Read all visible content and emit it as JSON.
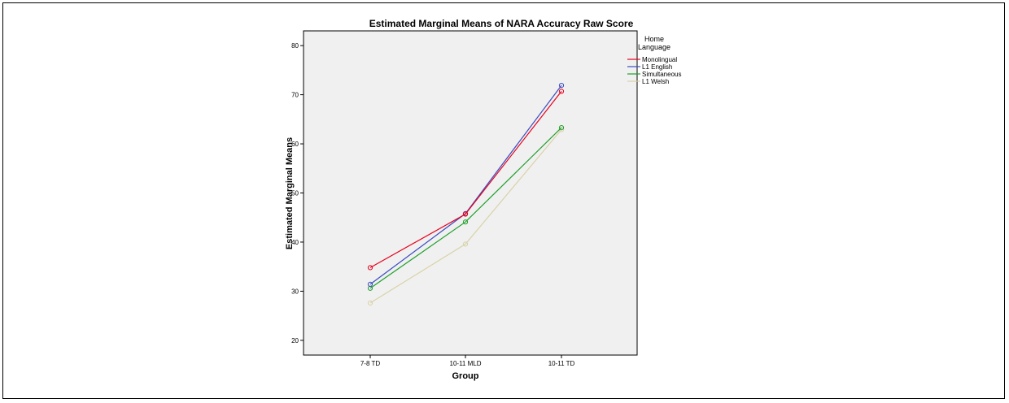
{
  "chart_data": {
    "type": "line",
    "title": "Estimated Marginal Means of NARA Accuracy Raw Score",
    "xlabel": "Group",
    "ylabel": "Estimated Marginal Means",
    "categories": [
      "7-8 TD",
      "10-11 MLD",
      "10-11 TD"
    ],
    "yticks": [
      "20",
      "30",
      "40",
      "50",
      "60",
      "70",
      "80"
    ],
    "ylim": [
      17,
      83
    ],
    "grid": false,
    "legend": {
      "title_lines": [
        "Home",
        "Language"
      ],
      "placement": "right"
    },
    "series": [
      {
        "name": "Monolingual",
        "color": "#e8001c",
        "values": [
          34.8,
          45.7,
          70.7
        ]
      },
      {
        "name": "L1 English",
        "color": "#3b4cc0",
        "values": [
          31.4,
          45.8,
          71.9
        ]
      },
      {
        "name": "Simultaneous",
        "color": "#1fa02c",
        "values": [
          30.6,
          44.1,
          63.3
        ]
      },
      {
        "name": "L1 Welsh",
        "color": "#d9d2a8",
        "values": [
          27.6,
          39.6,
          62.9
        ]
      }
    ],
    "plot_background": "#f0f0f0"
  }
}
